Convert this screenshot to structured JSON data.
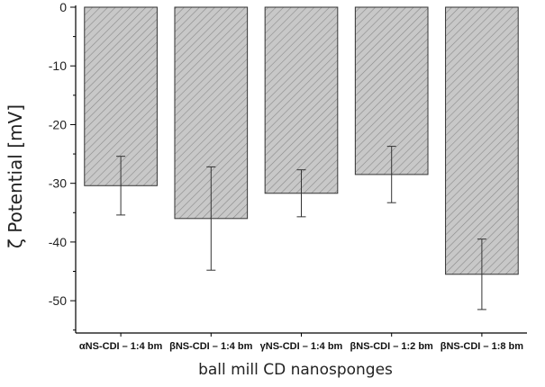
{
  "chart_data": {
    "type": "bar",
    "title": "",
    "xlabel": "ball mill CD nanosponges",
    "ylabel": "ζ Potential [mV]",
    "categories": [
      "αNS-CDI – 1:4 bm",
      "βNS-CDI – 1:4 bm",
      "γNS-CDI – 1:4 bm",
      "βNS-CDI – 1:2 bm",
      "βNS-CDI – 1:8 bm"
    ],
    "series": [
      {
        "name": "Zeta potential",
        "values": [
          -30.4,
          -36.0,
          -31.7,
          -28.5,
          -45.5
        ],
        "errors": [
          5.0,
          8.8,
          4.0,
          4.8,
          6.0
        ]
      }
    ],
    "ylim": [
      -55.5,
      0
    ],
    "yticks": [
      0,
      -10,
      -20,
      -30,
      -40,
      -50
    ],
    "ytick_labels": [
      "0",
      "-10",
      "-20",
      "-30",
      "-40",
      "-50"
    ],
    "bar_fill": "#c8c8c8",
    "hatch_color": "#8a8a8a",
    "bar_edge": "#333333",
    "grid": false
  }
}
